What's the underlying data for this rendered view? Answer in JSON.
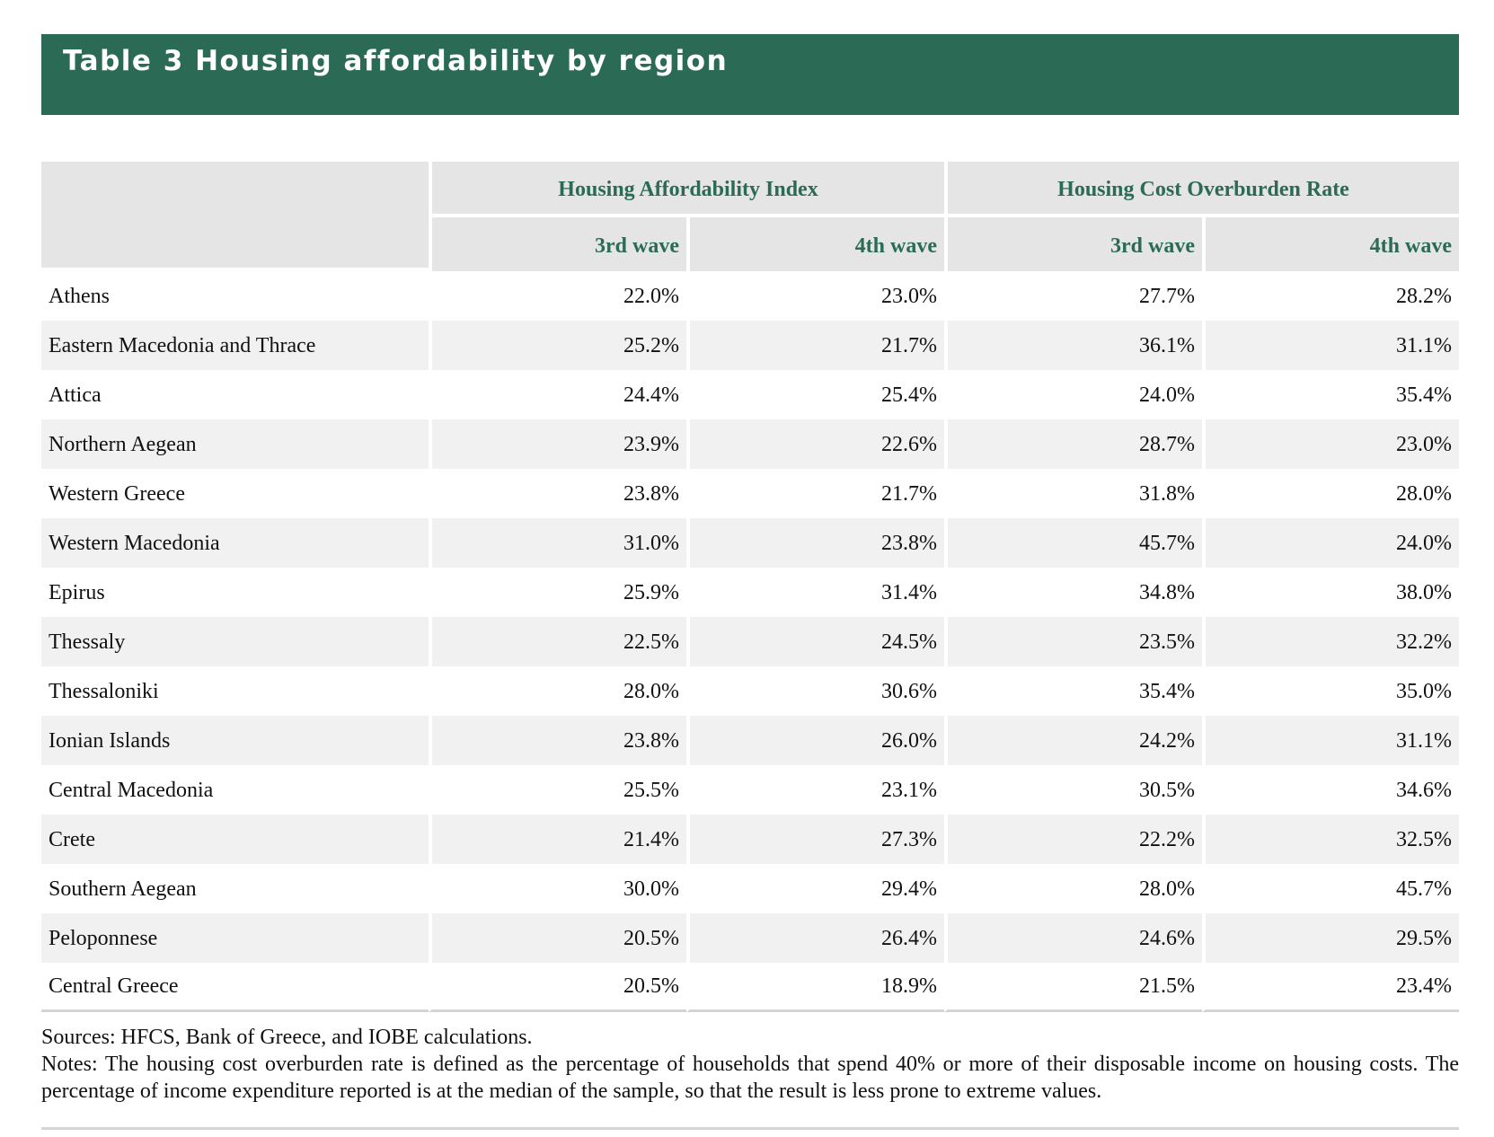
{
  "title": "Table 3 Housing affordability by region",
  "table": {
    "group_headers": [
      "Housing Affordability Index",
      "Housing Cost Overburden Rate"
    ],
    "wave_headers": [
      "3rd wave",
      "4th wave",
      "3rd wave",
      "4th wave"
    ],
    "rows": [
      {
        "region": "Athens",
        "values": [
          "22.0%",
          "23.0%",
          "27.7%",
          "28.2%"
        ]
      },
      {
        "region": "Eastern Macedonia and Thrace",
        "values": [
          "25.2%",
          "21.7%",
          "36.1%",
          "31.1%"
        ]
      },
      {
        "region": "Attica",
        "values": [
          "24.4%",
          "25.4%",
          "24.0%",
          "35.4%"
        ]
      },
      {
        "region": "Northern Aegean",
        "values": [
          "23.9%",
          "22.6%",
          "28.7%",
          "23.0%"
        ]
      },
      {
        "region": "Western Greece",
        "values": [
          "23.8%",
          "21.7%",
          "31.8%",
          "28.0%"
        ]
      },
      {
        "region": "Western Macedonia",
        "values": [
          "31.0%",
          "23.8%",
          "45.7%",
          "24.0%"
        ]
      },
      {
        "region": "Epirus",
        "values": [
          "25.9%",
          "31.4%",
          "34.8%",
          "38.0%"
        ]
      },
      {
        "region": "Thessaly",
        "values": [
          "22.5%",
          "24.5%",
          "23.5%",
          "32.2%"
        ]
      },
      {
        "region": "Thessaloniki",
        "values": [
          "28.0%",
          "30.6%",
          "35.4%",
          "35.0%"
        ]
      },
      {
        "region": "Ionian Islands",
        "values": [
          "23.8%",
          "26.0%",
          "24.2%",
          "31.1%"
        ]
      },
      {
        "region": "Central Macedonia",
        "values": [
          "25.5%",
          "23.1%",
          "30.5%",
          "34.6%"
        ]
      },
      {
        "region": "Crete",
        "values": [
          "21.4%",
          "27.3%",
          "22.2%",
          "32.5%"
        ]
      },
      {
        "region": "Southern Aegean",
        "values": [
          "30.0%",
          "29.4%",
          "28.0%",
          "45.7%"
        ]
      },
      {
        "region": "Peloponnese",
        "values": [
          "20.5%",
          "26.4%",
          "24.6%",
          "29.5%"
        ]
      },
      {
        "region": "Central Greece",
        "values": [
          "20.5%",
          "18.9%",
          "21.5%",
          "23.4%"
        ]
      }
    ]
  },
  "sources": "Sources: HFCS, Bank of Greece, and IOBE calculations.",
  "notes": "Notes: The housing cost overburden rate is defined as the percentage of households that spend 40% or more of their disposable income on hous­ing costs. The percentage of income expenditure reported is at the median of the sample, so that the result is less prone to extreme values.",
  "colors": {
    "banner": "#2b6b56",
    "header_text": "#2b6b56",
    "header_bg": "#e5e5e5",
    "stripe_bg": "#f1f1f1"
  }
}
